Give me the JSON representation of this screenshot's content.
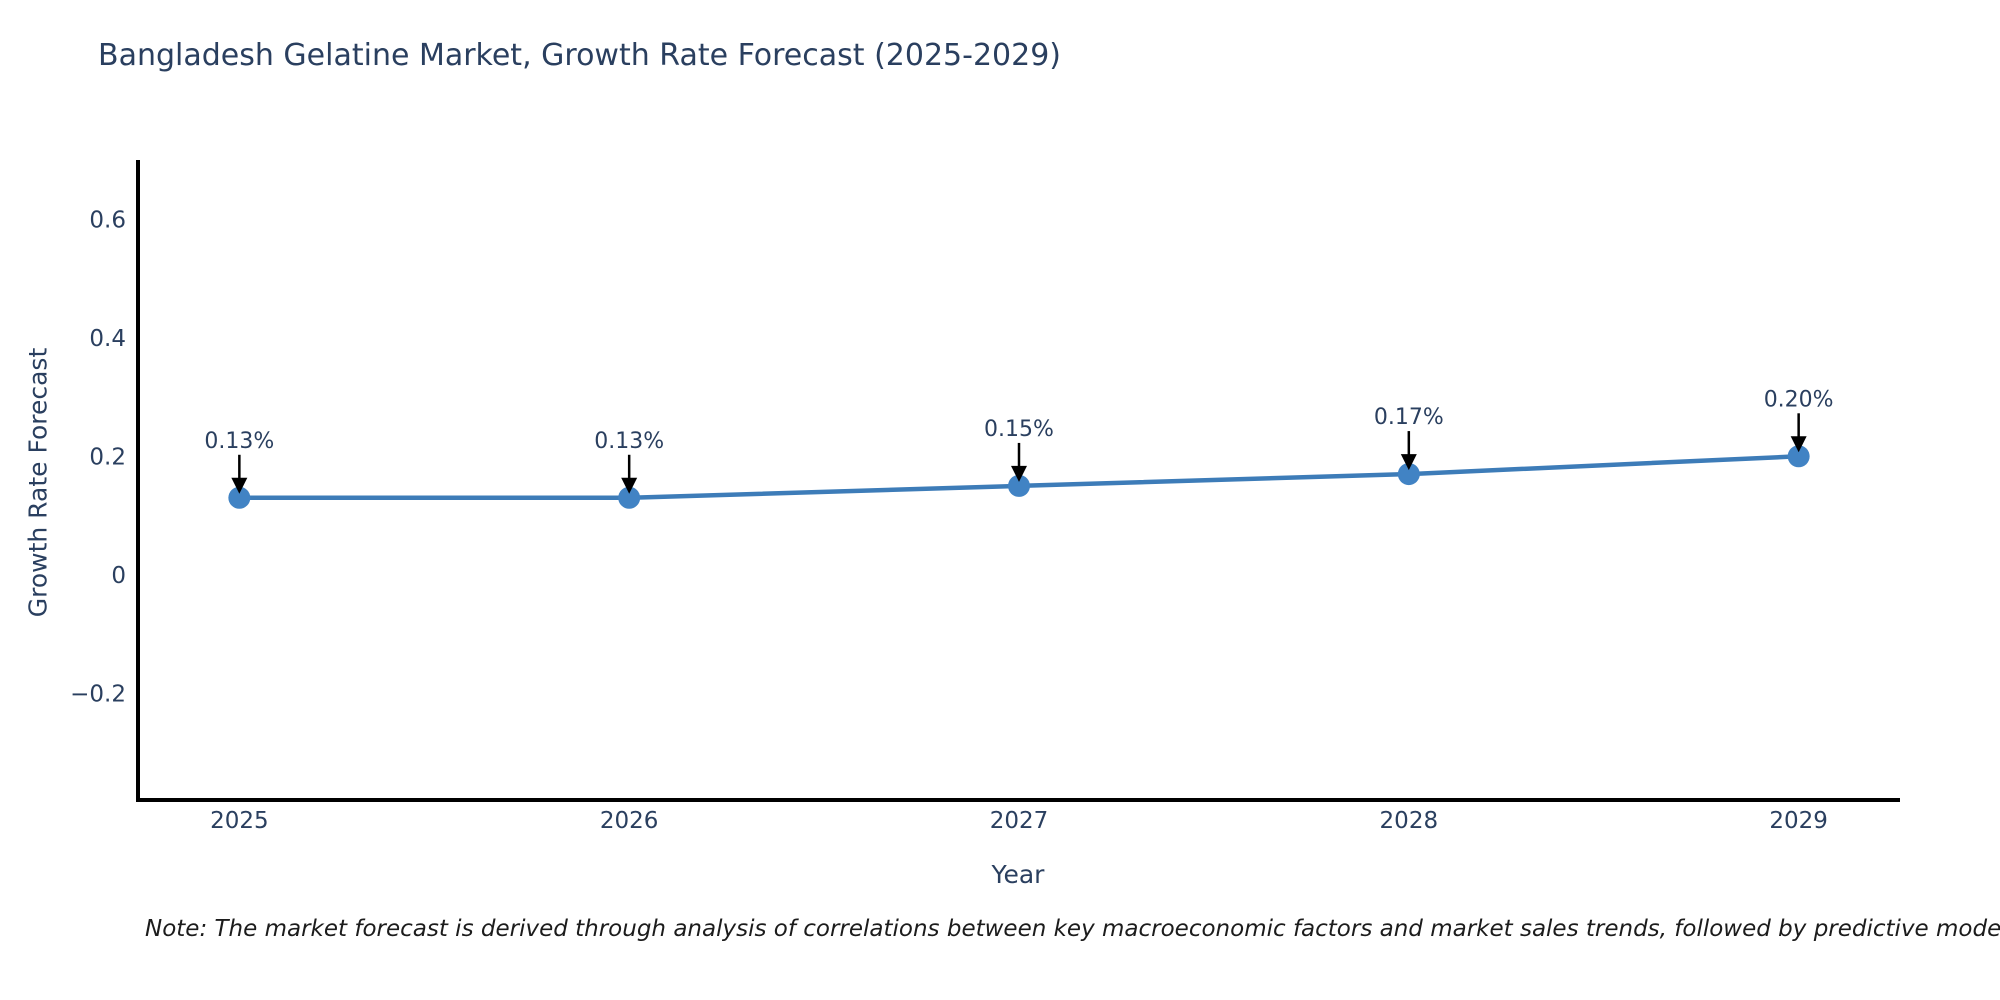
{
  "title": "Bangladesh Gelatine Market, Growth Rate Forecast (2025-2029)",
  "footnote": "Note: The market forecast is derived through analysis of correlations between key macroeconomic factors and market sales trends, followed by predictive modeling to project future sales",
  "chart_data": {
    "type": "line",
    "title": "Bangladesh Gelatine Market, Growth Rate Forecast (2025-2029)",
    "xlabel": "Year",
    "ylabel": "Growth Rate Forecast",
    "x": [
      2025,
      2026,
      2027,
      2028,
      2029
    ],
    "xtick_labels": [
      "2025",
      "2026",
      "2027",
      "2028",
      "2029"
    ],
    "values": [
      0.13,
      0.13,
      0.15,
      0.17,
      0.2
    ],
    "point_labels": [
      "0.13%",
      "0.13%",
      "0.15%",
      "0.17%",
      "0.20%"
    ],
    "yticks": [
      -0.2,
      0,
      0.2,
      0.4,
      0.6
    ],
    "ytick_labels": [
      "−0.2",
      "0",
      "0.2",
      "0.4",
      "0.6"
    ],
    "xlim": [
      2024.74,
      2029.26
    ],
    "ylim": [
      -0.38,
      0.7
    ],
    "grid": false,
    "legend": "none",
    "colors": {
      "line": "#3d7cb8",
      "marker": "#4183c4",
      "axis": "#000000",
      "tick_text": "#2a3f5f",
      "annotation_text": "#2a3f5f",
      "annotation_arrow": "#000000"
    }
  }
}
